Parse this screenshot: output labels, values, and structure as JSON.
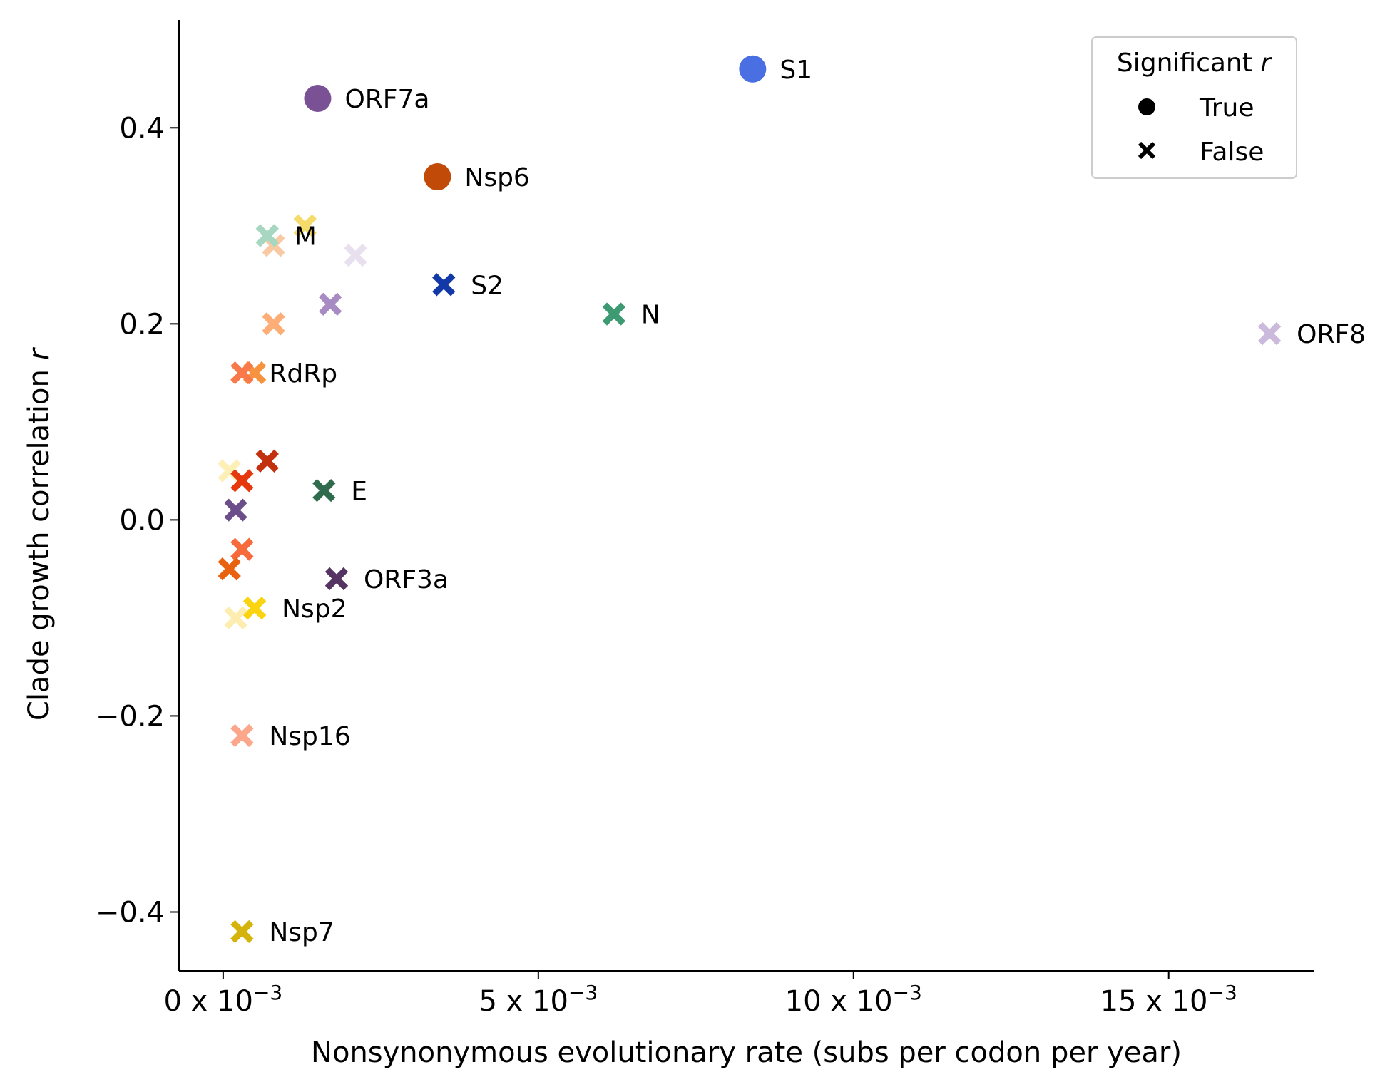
{
  "chart_data": {
    "type": "scatter",
    "xlabel": "Nonsynonymous evolutionary rate (subs per codon per year)",
    "ylabel_main": "Clade growth correlation ",
    "ylabel_italic": "r",
    "xlim": [
      -0.7,
      17.3
    ],
    "ylim": [
      -0.46,
      0.51
    ],
    "x_unit_note": "x values in units of 10^-3",
    "xticks": [
      {
        "value": 0,
        "label_main": "0 x 10",
        "label_exp": "−3"
      },
      {
        "value": 5,
        "label_main": "5 x 10",
        "label_exp": "−3"
      },
      {
        "value": 10,
        "label_main": "10 x 10",
        "label_exp": "−3"
      },
      {
        "value": 15,
        "label_main": "15 x 10",
        "label_exp": "−3"
      }
    ],
    "yticks": [
      {
        "value": 0.4,
        "label": "0.4"
      },
      {
        "value": 0.2,
        "label": "0.2"
      },
      {
        "value": 0.0,
        "label": "0.0"
      },
      {
        "value": -0.2,
        "label": "−0.2"
      },
      {
        "value": -0.4,
        "label": "−0.4"
      }
    ],
    "legend": {
      "title_main": "Significant ",
      "title_italic": "r",
      "placement": "top-right",
      "entries": [
        {
          "marker": "circle",
          "label": "True"
        },
        {
          "marker": "x",
          "label": "False"
        }
      ]
    },
    "points": [
      {
        "label": "S1",
        "x": 8.4,
        "y": 0.46,
        "significant": true,
        "color": "#4a6fe3"
      },
      {
        "label": "ORF7a",
        "x": 1.5,
        "y": 0.43,
        "significant": true,
        "color": "#7b5196"
      },
      {
        "label": "Nsp6",
        "x": 3.4,
        "y": 0.35,
        "significant": true,
        "color": "#c24a08"
      },
      {
        "label": "",
        "x": 1.3,
        "y": 0.3,
        "significant": false,
        "color": "#f5dc6a"
      },
      {
        "label": "",
        "x": 0.8,
        "y": 0.28,
        "significant": false,
        "color": "#f9c9a3"
      },
      {
        "label": "M",
        "x": 0.7,
        "y": 0.29,
        "significant": false,
        "color": "#a7d7c0"
      },
      {
        "label": "",
        "x": 2.1,
        "y": 0.27,
        "significant": false,
        "color": "#e8e0ef"
      },
      {
        "label": "S2",
        "x": 3.5,
        "y": 0.24,
        "significant": false,
        "color": "#1338a8"
      },
      {
        "label": "",
        "x": 1.7,
        "y": 0.22,
        "significant": false,
        "color": "#a98bc4"
      },
      {
        "label": "N",
        "x": 6.2,
        "y": 0.21,
        "significant": false,
        "color": "#3e9a72"
      },
      {
        "label": "",
        "x": 0.8,
        "y": 0.2,
        "significant": false,
        "color": "#fdae77"
      },
      {
        "label": "ORF8",
        "x": 16.6,
        "y": 0.19,
        "significant": false,
        "color": "#cbbadc"
      },
      {
        "label": "",
        "x": 0.5,
        "y": 0.15,
        "significant": false,
        "color": "#f7933e"
      },
      {
        "label": "RdRp",
        "x": 0.3,
        "y": 0.15,
        "significant": false,
        "color": "#f9794a"
      },
      {
        "label": "",
        "x": 0.7,
        "y": 0.06,
        "significant": false,
        "color": "#c2300e"
      },
      {
        "label": "",
        "x": 0.1,
        "y": 0.05,
        "significant": false,
        "color": "#fdefb5"
      },
      {
        "label": "",
        "x": 0.3,
        "y": 0.04,
        "significant": false,
        "color": "#e5380c"
      },
      {
        "label": "E",
        "x": 1.6,
        "y": 0.03,
        "significant": false,
        "color": "#2f6b4d"
      },
      {
        "label": "",
        "x": 0.2,
        "y": 0.01,
        "significant": false,
        "color": "#6b4e8a"
      },
      {
        "label": "",
        "x": 0.3,
        "y": -0.03,
        "significant": false,
        "color": "#f76a3c"
      },
      {
        "label": "",
        "x": 0.1,
        "y": -0.05,
        "significant": false,
        "color": "#e9620f"
      },
      {
        "label": "ORF3a",
        "x": 1.8,
        "y": -0.06,
        "significant": false,
        "color": "#553463"
      },
      {
        "label": "",
        "x": 0.2,
        "y": -0.1,
        "significant": false,
        "color": "#fdedb0"
      },
      {
        "label": "Nsp2",
        "x": 0.5,
        "y": -0.09,
        "significant": false,
        "color": "#f9d40f"
      },
      {
        "label": "Nsp16",
        "x": 0.3,
        "y": -0.22,
        "significant": false,
        "color": "#fca78b"
      },
      {
        "label": "Nsp7",
        "x": 0.3,
        "y": -0.42,
        "significant": false,
        "color": "#d4b40c"
      }
    ]
  }
}
